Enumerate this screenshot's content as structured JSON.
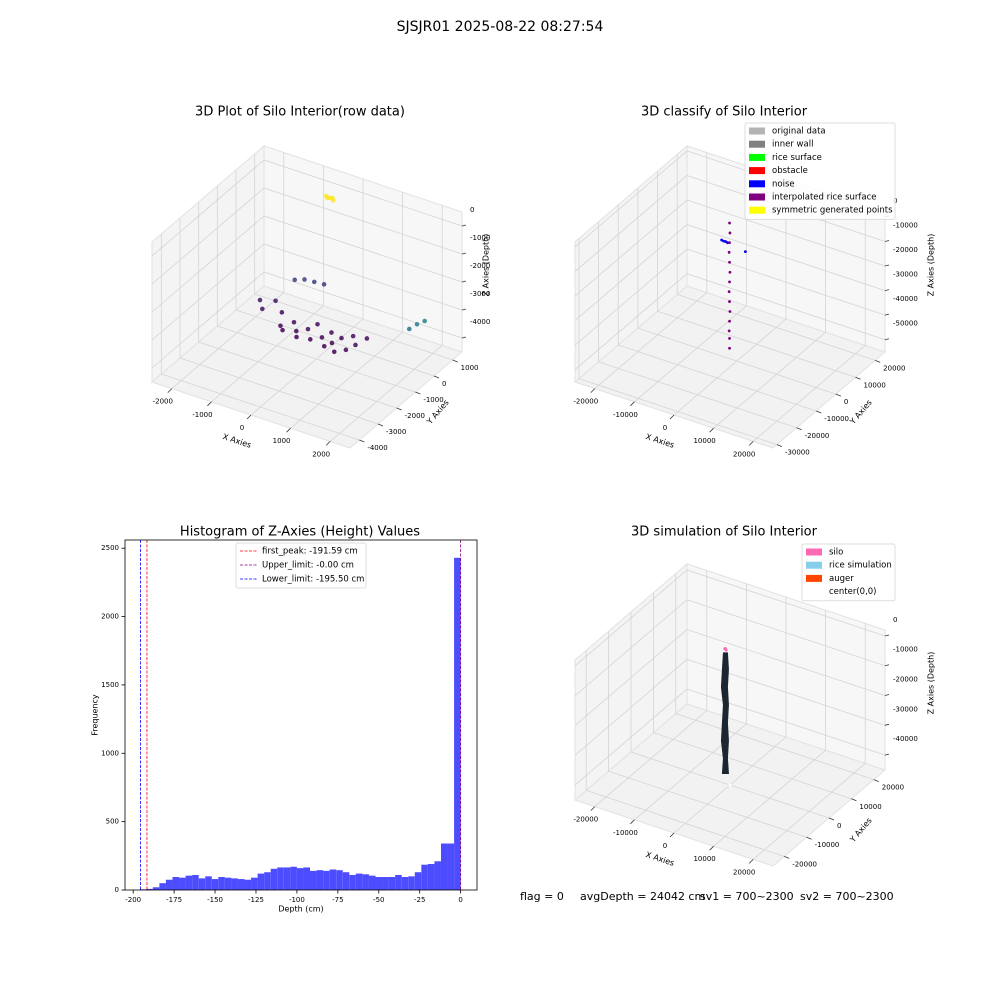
{
  "suptitle": "SJSJR01 2025-08-22 08:27:54",
  "chart_data": [
    {
      "type": "scatter3d",
      "title": "3D Plot of Silo Interior(row data)",
      "xlabel": "X Axies",
      "ylabel": "Y Axies",
      "zlabel": "Z Axies (Depth)",
      "xlim": [
        -2500,
        2500
      ],
      "ylim": [
        -4500,
        1500
      ],
      "zlim": [
        -4500,
        500
      ],
      "xticks": [
        -2000,
        -1000,
        0,
        1000,
        2000
      ],
      "yticks": [
        -4000,
        -3000,
        -2000,
        -1000,
        0,
        1000
      ],
      "zticks": [
        -4000,
        -3000,
        -2000,
        -1000,
        0
      ],
      "cmap": "viridis",
      "series": [
        {
          "name": "row data",
          "x": [
            -1800,
            -1600,
            -1500,
            -1200,
            -1000,
            -900,
            -800,
            -600,
            -500,
            -400,
            -300,
            -200,
            0,
            100,
            200,
            300,
            400,
            500,
            600,
            700,
            800,
            900,
            -1300,
            -1100,
            -900,
            -700,
            2400,
            2500,
            2300,
            -500,
            -400,
            -600,
            -450,
            -550
          ],
          "y": [
            -200,
            -500,
            0,
            -300,
            -800,
            -900,
            -500,
            -800,
            -1000,
            -600,
            -300,
            -900,
            -700,
            -400,
            -1000,
            -800,
            -500,
            -1100,
            -300,
            -900,
            -600,
            -200,
            600,
            700,
            800,
            900,
            -700,
            -500,
            -900,
            780,
            750,
            800,
            820,
            760
          ],
          "z": [
            -3700,
            -3750,
            -3700,
            -3800,
            -3900,
            -3950,
            -3850,
            -3900,
            -3950,
            -3850,
            -3800,
            -3950,
            -3900,
            -3850,
            -3950,
            -3900,
            -3850,
            -3950,
            -3800,
            -3900,
            -3850,
            -3800,
            -3200,
            -3150,
            -3200,
            -3250,
            -2300,
            -2250,
            -2400,
            0,
            -20,
            10,
            0,
            -10
          ]
        }
      ]
    },
    {
      "type": "scatter3d",
      "title": "3D classify of Silo Interior",
      "xlabel": "X Axies",
      "ylabel": "Y Axies",
      "zlabel": "Z Axies (Depth)",
      "xlim": [
        -25000,
        25000
      ],
      "ylim": [
        -32000,
        25000
      ],
      "zlim": [
        -55000,
        2000
      ],
      "xticks": [
        -20000,
        -10000,
        0,
        10000,
        20000
      ],
      "yticks": [
        -30000,
        -20000,
        -10000,
        0,
        10000,
        20000
      ],
      "zticks": [
        -50000,
        -40000,
        -30000,
        -20000,
        -10000,
        0
      ],
      "legend": "upper right",
      "series": [
        {
          "name": "original data",
          "color": "#b3b3b3",
          "x": [],
          "y": [],
          "z": []
        },
        {
          "name": "inner wall",
          "color": "#808080",
          "x": [],
          "y": [],
          "z": []
        },
        {
          "name": "rice surface",
          "color": "#00ff00",
          "x": [],
          "y": [],
          "z": []
        },
        {
          "name": "obstacle",
          "color": "#ff0000",
          "x": [],
          "y": [],
          "z": []
        },
        {
          "name": "noise",
          "color": "#0000ff",
          "x": [
            -4500,
            -4000,
            -3500,
            -3000,
            1500
          ],
          "y": [
            1300,
            1300,
            1300,
            1300,
            1300
          ],
          "z": [
            -9000,
            -9200,
            -9100,
            -9300,
            -10500
          ]
        },
        {
          "name": "interpolated rice surface",
          "color": "#800080",
          "x": [
            -2500,
            -2400,
            -2500,
            -2600,
            -2500,
            -2400,
            -2500,
            -2600,
            -2500,
            -2400,
            -2500,
            -2600,
            -2500,
            -2500
          ],
          "y": [
            1300,
            1300,
            1300,
            1300,
            1300,
            1300,
            1300,
            1300,
            1300,
            1300,
            1300,
            1300,
            1300,
            1300
          ],
          "z": [
            -1000,
            -5000,
            -9000,
            -13000,
            -17000,
            -21000,
            -25000,
            -29000,
            -33000,
            -37000,
            -41000,
            -45000,
            -48000,
            -52000
          ]
        },
        {
          "name": "symmetric generated points",
          "color": "#ffff00",
          "x": [],
          "y": [],
          "z": []
        }
      ]
    },
    {
      "type": "histogram",
      "title": "Histogram of Z-Axies (Height) Values",
      "xlabel": "Depth (cm)",
      "ylabel": "Frequency",
      "xlim": [
        -205,
        10
      ],
      "ylim": [
        0,
        2560
      ],
      "xticks": [
        -200,
        -175,
        -150,
        -125,
        -100,
        -75,
        -50,
        -25,
        0
      ],
      "yticks": [
        0,
        500,
        1000,
        1500,
        2000,
        2500
      ],
      "color": "#4d4dff",
      "bins": [
        -196,
        -192,
        -188,
        -184,
        -180,
        -176,
        -172,
        -168,
        -164,
        -160,
        -156,
        -152,
        -148,
        -144,
        -140,
        -136,
        -132,
        -128,
        -124,
        -120,
        -116,
        -112,
        -108,
        -104,
        -100,
        -96,
        -92,
        -88,
        -84,
        -80,
        -76,
        -72,
        -68,
        -64,
        -60,
        -56,
        -52,
        -48,
        -44,
        -40,
        -36,
        -32,
        -28,
        -24,
        -20,
        -16,
        -12,
        -8,
        -4,
        0
      ],
      "values": [
        5,
        8,
        20,
        50,
        75,
        95,
        90,
        105,
        110,
        85,
        100,
        80,
        95,
        90,
        85,
        80,
        75,
        90,
        120,
        130,
        155,
        165,
        165,
        170,
        160,
        165,
        140,
        145,
        140,
        150,
        145,
        130,
        110,
        120,
        115,
        105,
        95,
        95,
        95,
        110,
        95,
        100,
        130,
        185,
        190,
        210,
        340,
        340,
        2430
      ],
      "vlines": [
        {
          "label": "first_peak: -191.59 cm",
          "value": -191.59,
          "color": "#ff0000"
        },
        {
          "label": "Upper_limit: -0.00 cm",
          "value": -0.0,
          "color": "#800080"
        },
        {
          "label": "Lower_limit: -195.50 cm",
          "value": -195.5,
          "color": "#0000ff"
        }
      ]
    },
    {
      "type": "surface3d",
      "title": "3D simulation of Silo Interior",
      "xlabel": "X Axies",
      "ylabel": "Y Axies",
      "zlabel": "Z Axies (Depth)",
      "xlim": [
        -25000,
        25000
      ],
      "ylim": [
        -25000,
        25000
      ],
      "zlim": [
        -45000,
        2000
      ],
      "xticks": [
        -20000,
        -10000,
        0,
        10000,
        20000
      ],
      "yticks": [
        -20000,
        -10000,
        0,
        10000,
        20000
      ],
      "zticks": [
        -40000,
        -30000,
        -20000,
        -10000,
        0
      ],
      "legend": "upper right",
      "surface_color": "#1b2630",
      "series": [
        {
          "name": "silo",
          "color": "#ff69b4",
          "x": [
            -2000,
            -1800,
            -2200
          ],
          "y": [
            1500,
            1500,
            1500
          ],
          "z": [
            -1000,
            -1500,
            -1200
          ]
        },
        {
          "name": "rice simulation",
          "color": "#87ceeb",
          "x": [
            -2000,
            -2000,
            -2000,
            -2000,
            -2000,
            -2000,
            -2000,
            -2000
          ],
          "y": [
            1500,
            1500,
            1500,
            1500,
            1500,
            1500,
            1500,
            1500
          ],
          "z": [
            -2500,
            -8000,
            -14000,
            -20000,
            -26000,
            -32000,
            -38000,
            -43000
          ]
        },
        {
          "name": "auger",
          "color": "#ff4500",
          "x": [],
          "y": [],
          "z": []
        },
        {
          "name": "center(0,0)",
          "color": "#ffffff",
          "x": [
            0
          ],
          "y": [
            0
          ],
          "z": [
            -45000
          ]
        }
      ]
    }
  ],
  "footer": [
    "flag = 0",
    "avgDepth = 24042 cm",
    "sv1 = 700~2300",
    "sv2 = 700~2300"
  ]
}
